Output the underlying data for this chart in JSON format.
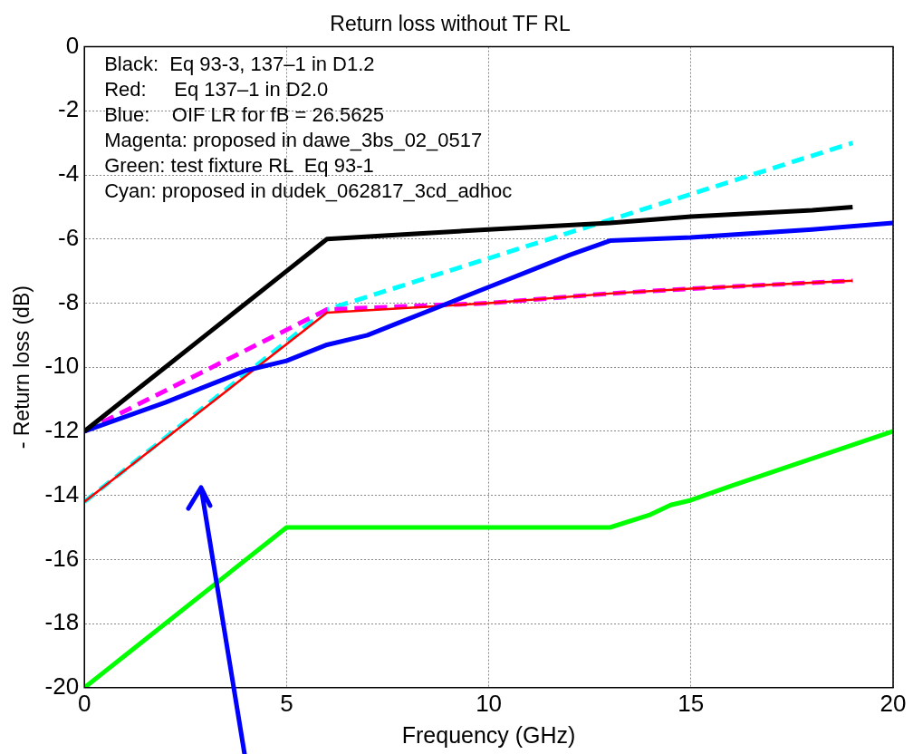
{
  "chart_data": {
    "type": "line",
    "title": "Return loss without TF RL",
    "xlabel": "Frequency (GHz)",
    "ylabel": "- Return loss (dB)",
    "xlim": [
      0,
      20
    ],
    "xticks": [
      0,
      5,
      10,
      15,
      20
    ],
    "ylim": [
      -20,
      0
    ],
    "yticks": [
      -20,
      -18,
      -16,
      -14,
      -12,
      -10,
      -8,
      -6,
      -4,
      -2,
      0
    ],
    "grid": true,
    "legend": false,
    "marker": "none",
    "annotations": [
      "Black:  Eq 93-3, 137–1 in D1.2",
      "Red:     Eq 137–1 in D2.0",
      "Blue:    OIF LR for fB = 26.5625",
      "Magenta: proposed in dawe_3bs_02_0517",
      "Green: test fixture RL  Eq 93-1",
      "Cyan: proposed in dudek_062817_3cd_adhoc"
    ],
    "series": [
      {
        "color": "#000000",
        "line_style": "solid",
        "x": [
          0,
          1,
          2,
          3,
          4,
          5,
          6,
          10,
          13,
          15,
          18,
          19
        ],
        "values": [
          -12,
          -11,
          -10,
          -9,
          -8,
          -7,
          -6,
          -5.7,
          -5.5,
          -5.3,
          -5.1,
          -5
        ]
      },
      {
        "color": "#0000ff",
        "line_style": "solid",
        "x": [
          0,
          2,
          3,
          4,
          5,
          6,
          7,
          8,
          9,
          10,
          11,
          12,
          13,
          15,
          18,
          20
        ],
        "values": [
          -12,
          -11.1,
          -10.6,
          -10.1,
          -9.8,
          -9.3,
          -9,
          -8.5,
          -8,
          -7.5,
          -7,
          -6.5,
          -6.05,
          -5.95,
          -5.7,
          -5.5
        ]
      },
      {
        "color": "#ff0000",
        "line_style": "solid",
        "x": [
          0,
          6,
          10,
          13,
          15,
          19
        ],
        "values": [
          -14.2,
          -8.3,
          -8,
          -7.7,
          -7.55,
          -7.3
        ]
      },
      {
        "color": "#ff00ff",
        "line_style": "dashed",
        "x": [
          0,
          6,
          10,
          13,
          15,
          19
        ],
        "values": [
          -12,
          -8.2,
          -8,
          -7.7,
          -7.55,
          -7.3
        ]
      },
      {
        "color": "#00ffff",
        "line_style": "dashed",
        "x": [
          0,
          6,
          13,
          19
        ],
        "values": [
          -14.2,
          -8.2,
          -5.4,
          -3.0
        ]
      },
      {
        "color": "#00ff00",
        "line_style": "solid",
        "x": [
          0,
          0.5,
          1,
          5,
          13,
          14,
          14.5,
          15,
          16,
          20
        ],
        "values": [
          -20,
          -19.5,
          -19,
          -15,
          -15,
          -14.6,
          -14.3,
          -14.15,
          -13.7,
          -12
        ]
      }
    ]
  }
}
